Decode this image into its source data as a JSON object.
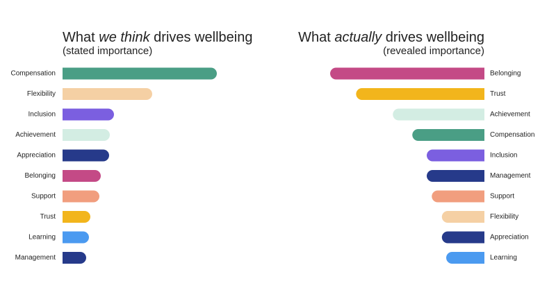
{
  "chart_data": [
    {
      "type": "bar",
      "orientation": "horizontal",
      "title_parts": [
        "What ",
        "we think",
        " drives wellbeing"
      ],
      "subtitle": "(stated importance)",
      "categories": [
        "Compensation",
        "Flexibility",
        "Inclusion",
        "Achievement",
        "Appreciation",
        "Belonging",
        "Support",
        "Trust",
        "Learning",
        "Management"
      ],
      "values": [
        222,
        129,
        74,
        68,
        67,
        55,
        53,
        40,
        38,
        34
      ],
      "colors": [
        "#4a9e85",
        "#f5d0a4",
        "#7b5fe0",
        "#d3ede3",
        "#263a8a",
        "#c44a86",
        "#f19e7e",
        "#f2b51c",
        "#4b9af0",
        "#263a8a"
      ],
      "xlim": [
        0,
        222
      ],
      "x_reversed": false
    },
    {
      "type": "bar",
      "orientation": "horizontal",
      "title_parts": [
        "What ",
        "actually",
        " drives wellbeing"
      ],
      "subtitle": "(revealed importance)",
      "categories": [
        "Belonging",
        "Trust",
        "Achievement",
        "Compensation",
        "Inclusion",
        "Management",
        "Support",
        "Flexibility",
        "Appreciation",
        "Learning"
      ],
      "values": [
        214,
        178,
        127,
        100,
        80,
        80,
        73,
        59,
        59,
        53
      ],
      "colors": [
        "#c44a86",
        "#f2b51c",
        "#d3ede3",
        "#4a9e85",
        "#7b5fe0",
        "#263a8a",
        "#f19e7e",
        "#f5d0a4",
        "#263a8a",
        "#4b9af0"
      ],
      "xlim": [
        0,
        214
      ],
      "x_reversed": true
    }
  ]
}
